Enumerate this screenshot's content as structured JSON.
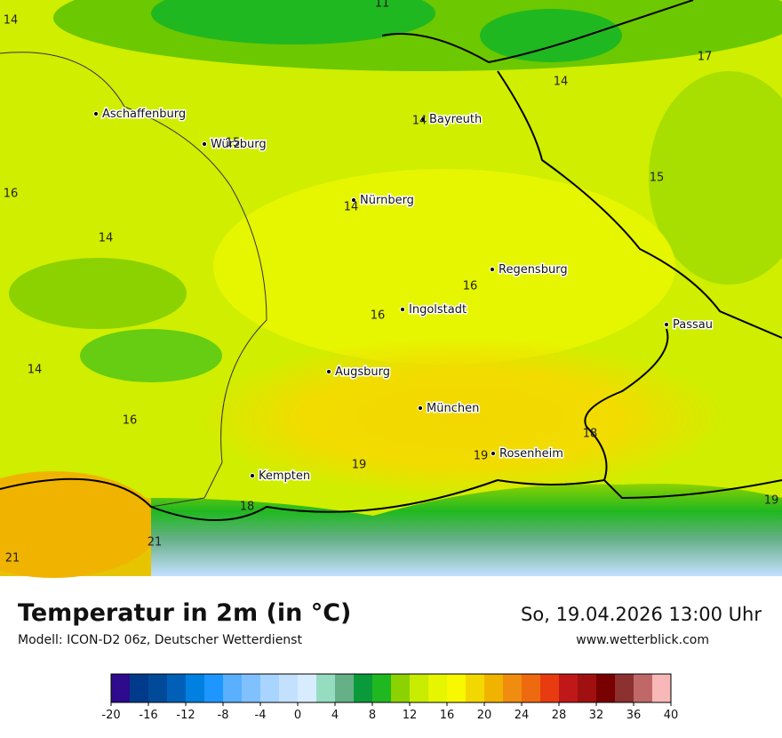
{
  "title": "Temperatur in 2m (in °C)",
  "subtitle": "Modell: ICON-D2 06z, Deutscher Wetterdienst",
  "date": "So, 19.04.2026 13:00 Uhr",
  "website": "www.wetterblick.com",
  "cities": [
    "Aschaffenburg",
    "Würzburg",
    "Bayreuth",
    "Nürnberg",
    "Regensburg",
    "Ingolstadt",
    "Passau",
    "Augsburg",
    "München",
    "Rosenheim",
    "Kempten"
  ],
  "labels": [
    14,
    11,
    17,
    14,
    14,
    15,
    15,
    16,
    14,
    14,
    16,
    16,
    14,
    16,
    18,
    19,
    19,
    18,
    19,
    21,
    21
  ],
  "legend": {
    "range": [
      -20,
      40
    ],
    "colors": [
      "#2e0a8c",
      "#003a8a",
      "#004a99",
      "#0060b8",
      "#0080e0",
      "#1e96ff",
      "#5ab0ff",
      "#80c0ff",
      "#a8d4ff",
      "#c4e0ff",
      "#d8ecff",
      "#96dcc0",
      "#66b088",
      "#0a9a3a",
      "#20b820",
      "#8cd200",
      "#c8ec00",
      "#e6f500",
      "#f8f800",
      "#f2d800",
      "#f0b400",
      "#f08c10",
      "#ee6a10",
      "#e83c10",
      "#c01818",
      "#a01010",
      "#780000",
      "#8c3030",
      "#c06868",
      "#f8b8b8"
    ],
    "ticks": [
      -20,
      -16,
      -12,
      -8,
      -4,
      0,
      4,
      8,
      12,
      16,
      20,
      24,
      28,
      32,
      36,
      40
    ]
  }
}
